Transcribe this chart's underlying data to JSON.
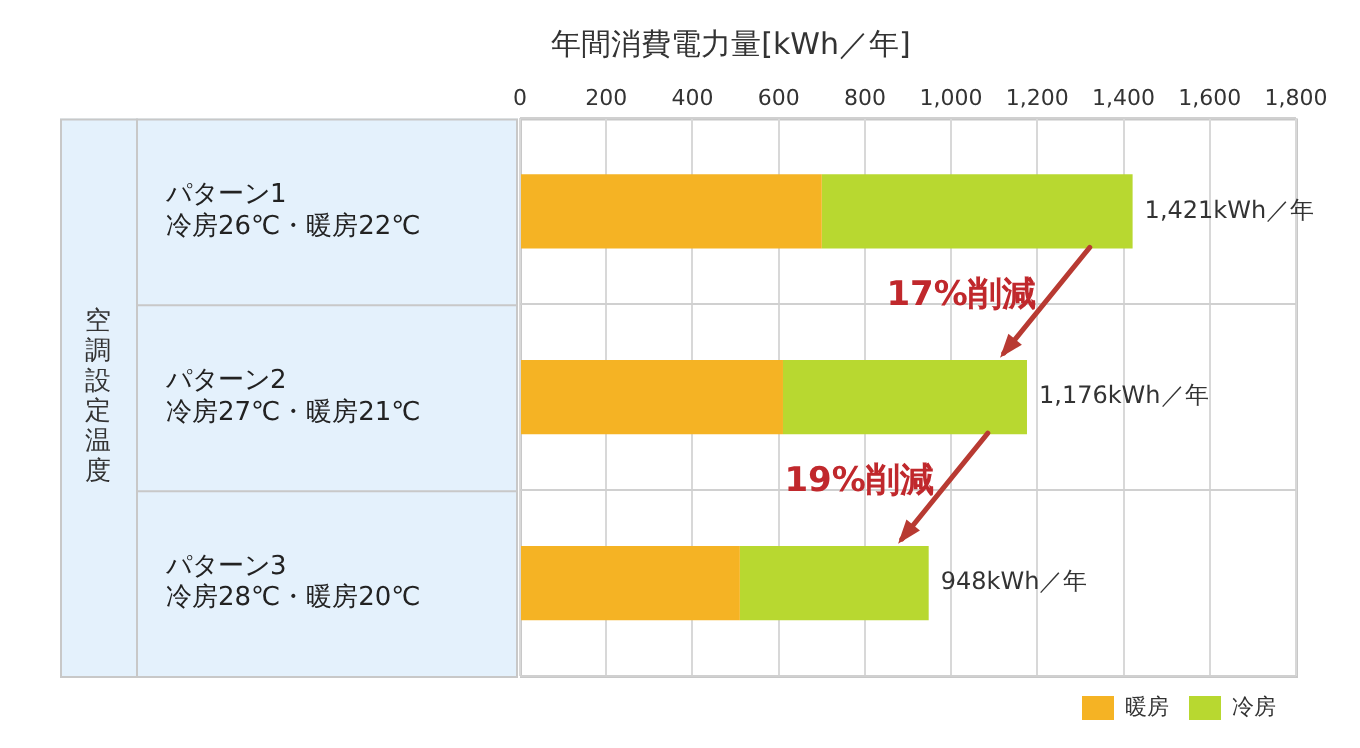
{
  "chart_data": {
    "type": "bar",
    "orientation": "horizontal",
    "stacked": true,
    "title": "年間消費電力量[kWh／年]",
    "ylabel": "空調設定温度",
    "categories": [
      "パターン1\n冷房26℃・暖房22℃",
      "パターン2\n冷房27℃・暖房21℃",
      "パターン3\n冷房28℃・暖房20℃"
    ],
    "series": [
      {
        "name": "暖房",
        "color": "#f5b324",
        "values": [
          700,
          610,
          510
        ]
      },
      {
        "name": "冷房",
        "color": "#b8d830",
        "values": [
          721,
          566,
          438
        ]
      }
    ],
    "totals": [
      "1,421kWh／年",
      "1,176kWh／年",
      "948kWh／年"
    ],
    "annotations": [
      "17%削減",
      "19%削減"
    ],
    "xlim": [
      0,
      1800
    ],
    "xticks": [
      0,
      {
        "value": 200,
        "label": "200"
      },
      {
        "value": 400,
        "label": "400"
      },
      {
        "value": 600,
        "label": "600"
      },
      {
        "value": 800,
        "label": "800"
      },
      {
        "value": 1000,
        "label": "1,000"
      },
      {
        "value": 1200,
        "label": "1,200"
      },
      {
        "value": 1400,
        "label": "1,400"
      },
      {
        "value": 1600,
        "label": "1,600"
      },
      {
        "value": 1800,
        "label": "1,800"
      }
    ],
    "grid": true,
    "legend": "bottom right"
  }
}
